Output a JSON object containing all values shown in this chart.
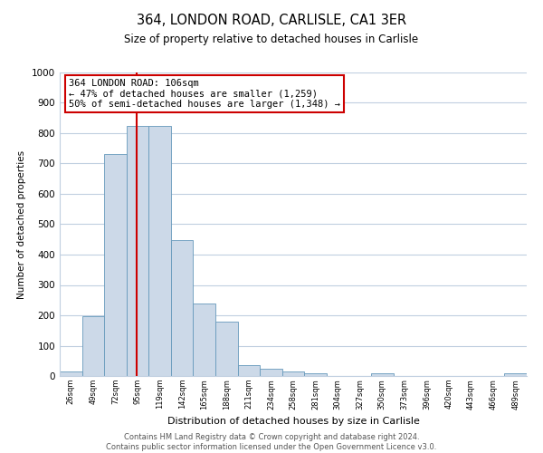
{
  "title": "364, LONDON ROAD, CARLISLE, CA1 3ER",
  "subtitle": "Size of property relative to detached houses in Carlisle",
  "xlabel": "Distribution of detached houses by size in Carlisle",
  "ylabel": "Number of detached properties",
  "bar_labels": [
    "26sqm",
    "49sqm",
    "72sqm",
    "95sqm",
    "119sqm",
    "142sqm",
    "165sqm",
    "188sqm",
    "211sqm",
    "234sqm",
    "258sqm",
    "281sqm",
    "304sqm",
    "327sqm",
    "350sqm",
    "373sqm",
    "396sqm",
    "420sqm",
    "443sqm",
    "466sqm",
    "489sqm"
  ],
  "bar_values": [
    15,
    197,
    730,
    825,
    825,
    447,
    238,
    178,
    35,
    25,
    15,
    10,
    0,
    0,
    8,
    0,
    0,
    0,
    0,
    0,
    10
  ],
  "bar_color": "#ccd9e8",
  "bar_edge_color": "#6699bb",
  "vline_x": 3.46,
  "annotation_title": "364 LONDON ROAD: 106sqm",
  "annotation_line1": "← 47% of detached houses are smaller (1,259)",
  "annotation_line2": "50% of semi-detached houses are larger (1,348) →",
  "annotation_box_color": "#ffffff",
  "annotation_box_edge": "#cc0000",
  "vline_color": "#cc0000",
  "ylim": [
    0,
    1000
  ],
  "yticks": [
    0,
    100,
    200,
    300,
    400,
    500,
    600,
    700,
    800,
    900,
    1000
  ],
  "footer_line1": "Contains HM Land Registry data © Crown copyright and database right 2024.",
  "footer_line2": "Contains public sector information licensed under the Open Government Licence v3.0.",
  "background_color": "#ffffff",
  "grid_color": "#c0cfe0"
}
